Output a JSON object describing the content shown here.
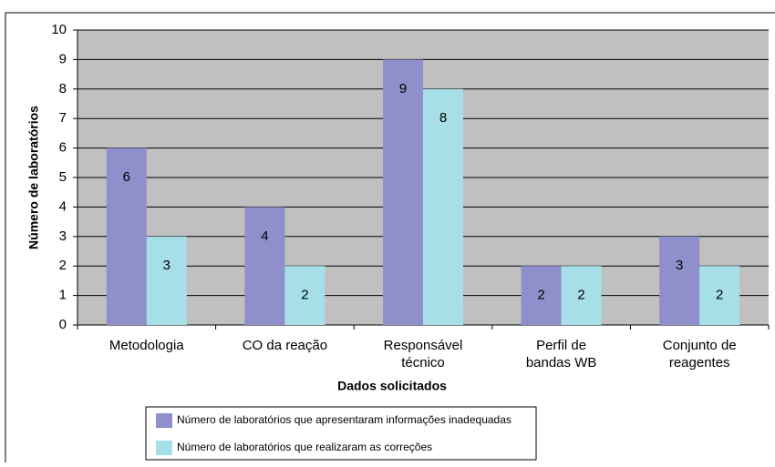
{
  "chart_data": {
    "type": "bar",
    "categories": [
      [
        "Metodologia"
      ],
      [
        "CO da reação"
      ],
      [
        "Responsável",
        "técnico"
      ],
      [
        "Perfil de",
        "bandas  WB"
      ],
      [
        "Conjunto de",
        "reagentes"
      ]
    ],
    "series": [
      {
        "name": "Número de laboratórios que apresentaram  informações inadequadas",
        "color": "#8f8fcb",
        "values": [
          6,
          4,
          9,
          2,
          3
        ]
      },
      {
        "name": "Número de laboratórios que realizaram as correções",
        "color": "#a6dfe8",
        "values": [
          3,
          2,
          8,
          2,
          2
        ]
      }
    ],
    "x_label": "Dados solicitados",
    "y_label": "Número de laboratórios",
    "ylim": [
      0,
      10
    ],
    "yticks": [
      0,
      1,
      2,
      3,
      4,
      5,
      6,
      7,
      8,
      9,
      10
    ],
    "grid": true,
    "legend": "bottom"
  }
}
